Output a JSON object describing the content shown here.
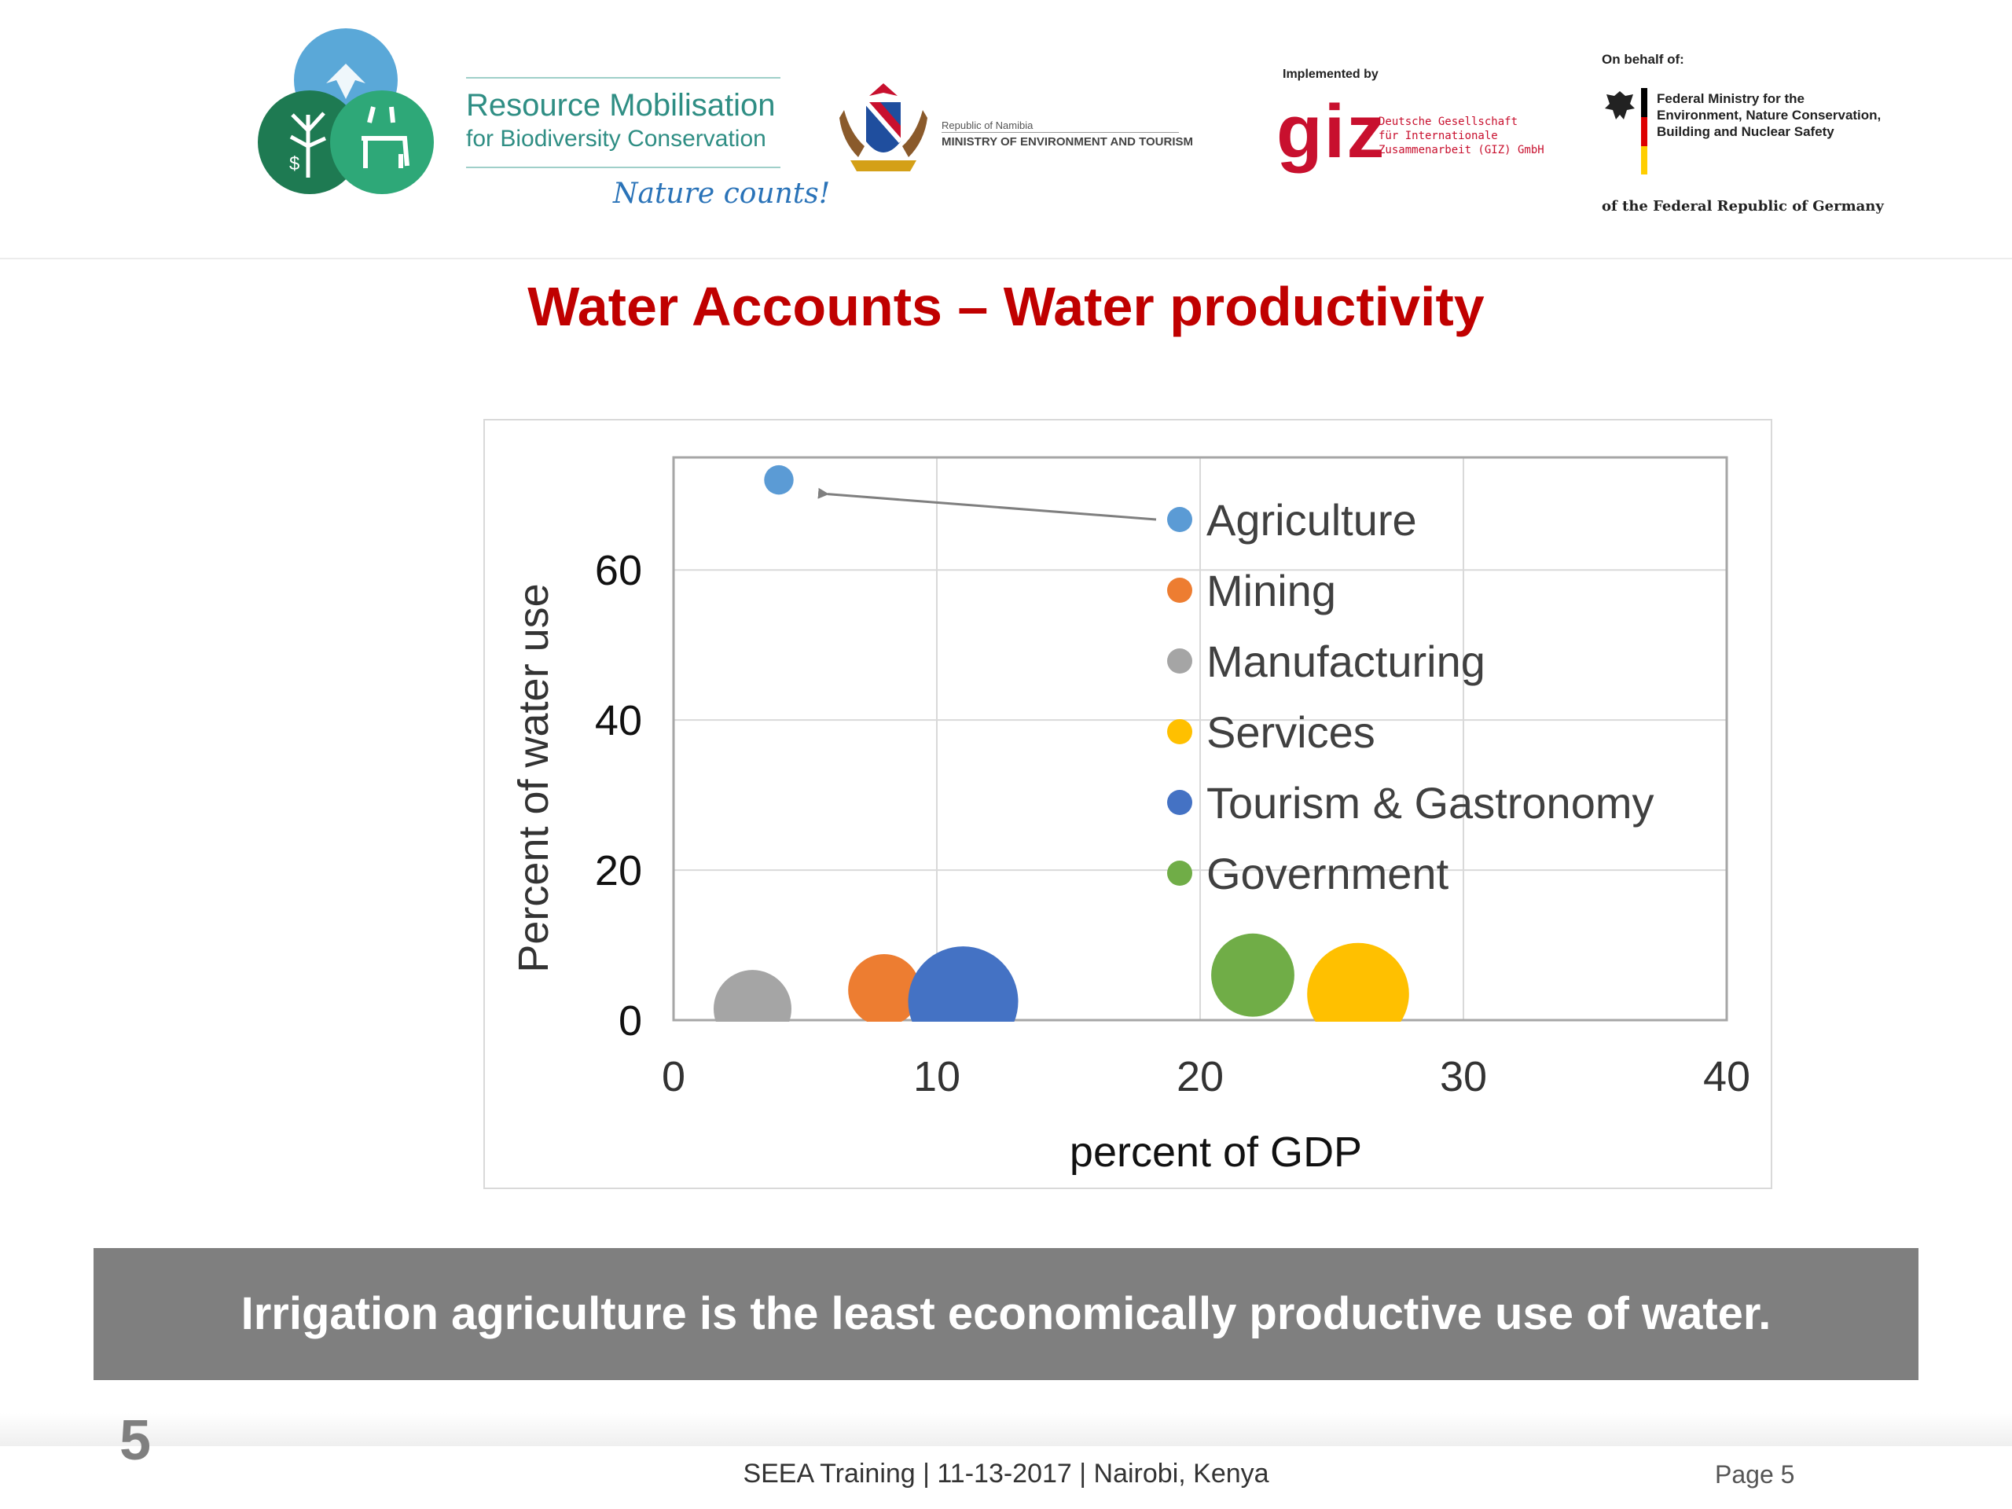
{
  "header": {
    "rm_title": "Resource Mobilisation",
    "rm_subtitle": "for Biodiversity Conservation",
    "rm_tagline": "Nature counts!",
    "namibia_small": "Republic of Namibia",
    "namibia_ministry": "MINISTRY OF ENVIRONMENT AND TOURISM",
    "implemented_by": "Implemented by",
    "giz_logo": "giz",
    "giz_lines": [
      "Deutsche Gesellschaft",
      "für Internationale",
      "Zusammenarbeit (GIZ) GmbH"
    ],
    "on_behalf_of": "On behalf of:",
    "bmu_lines": [
      "Federal Ministry for the",
      "Environment, Nature Conservation,",
      "Building and Nuclear Safety"
    ],
    "federal_republic": "of the Federal Republic of Germany"
  },
  "slide": {
    "title": "Water Accounts – Water productivity",
    "banner": "Irrigation agriculture is the least economically productive use of water.",
    "page_number": "5",
    "footer": "SEEA Training  |  11-13-2017  | Nairobi, Kenya",
    "page_label": "Page 5"
  },
  "chart_data": {
    "type": "scatter",
    "xlabel": "percent of GDP",
    "ylabel": "Percent of water use",
    "xlim": [
      0,
      40
    ],
    "ylim": [
      0,
      75
    ],
    "xticks": [
      "0",
      "10",
      "20",
      "30",
      "40"
    ],
    "yticks": [
      "0",
      "20",
      "40",
      "60"
    ],
    "grid": true,
    "legend_position": "top-right",
    "series": [
      {
        "name": "Agriculture",
        "x": 4,
        "y": 72,
        "size": 0.5,
        "color": "#5b9bd5"
      },
      {
        "name": "Mining",
        "x": 8,
        "y": 4,
        "size": 3,
        "color": "#ed7d31"
      },
      {
        "name": "Manufacturing",
        "x": 3,
        "y": 1.5,
        "size": 3.5,
        "color": "#a5a5a5"
      },
      {
        "name": "Services",
        "x": 26,
        "y": 3.5,
        "size": 6,
        "color": "#ffc000"
      },
      {
        "name": "Tourism & Gastronomy",
        "x": 11,
        "y": 2.5,
        "size": 7,
        "color": "#4472c4"
      },
      {
        "name": "Government",
        "x": 22,
        "y": 6,
        "size": 4,
        "color": "#70ad47"
      }
    ]
  }
}
